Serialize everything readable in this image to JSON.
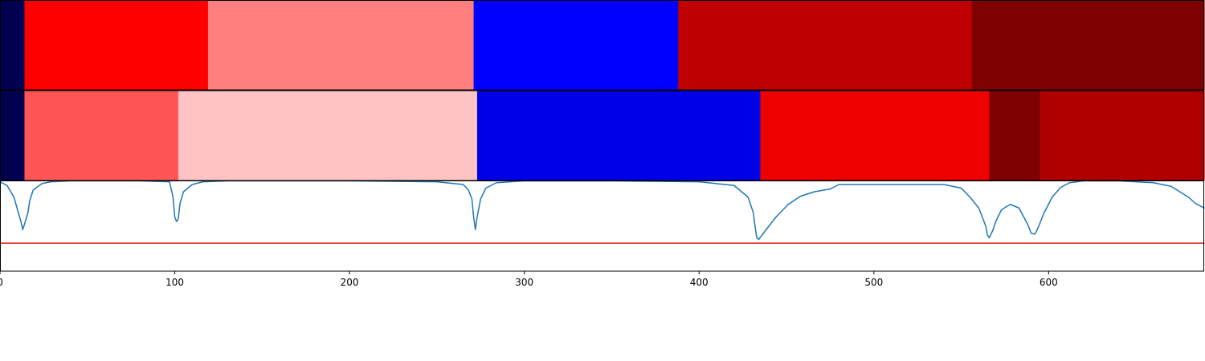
{
  "chart_data": [
    {
      "type": "heatmap",
      "colormap": "seismic",
      "segments": [
        {
          "start": 0,
          "end": 14,
          "color": "#000050"
        },
        {
          "start": 14,
          "end": 119,
          "color": "#ff0000"
        },
        {
          "start": 119,
          "end": 271,
          "color": "#ff7f7f"
        },
        {
          "start": 271,
          "end": 388,
          "color": "#0000ff"
        },
        {
          "start": 388,
          "end": 556,
          "color": "#bf0000"
        },
        {
          "start": 556,
          "end": 689,
          "color": "#7f0000"
        }
      ]
    },
    {
      "type": "heatmap",
      "colormap": "seismic",
      "segments": [
        {
          "start": 0,
          "end": 14,
          "color": "#000050"
        },
        {
          "start": 14,
          "end": 102,
          "color": "#ff5555"
        },
        {
          "start": 102,
          "end": 273,
          "color": "#ffc3c3"
        },
        {
          "start": 273,
          "end": 435,
          "color": "#0000e6"
        },
        {
          "start": 435,
          "end": 566,
          "color": "#ee0000"
        },
        {
          "start": 566,
          "end": 595,
          "color": "#7f0000"
        },
        {
          "start": 595,
          "end": 689,
          "color": "#b00000"
        }
      ]
    },
    {
      "type": "line",
      "xlim": [
        0,
        689
      ],
      "ylim": [
        0,
        1
      ],
      "xticks": [
        0,
        100,
        200,
        300,
        400,
        500,
        600
      ],
      "series": [
        {
          "color": "#1f77b4",
          "x": [
            0,
            4,
            8,
            10,
            12,
            13,
            14,
            16,
            17,
            19,
            24,
            29,
            40,
            60,
            80,
            97,
            99,
            100,
            101,
            102,
            103,
            105,
            110,
            116,
            130,
            160,
            200,
            250,
            265,
            268,
            270,
            271,
            272,
            273,
            275,
            278,
            284,
            300,
            350,
            400,
            420,
            428,
            431,
            432,
            433,
            434,
            436,
            438,
            440,
            444,
            451,
            458,
            466,
            475,
            480,
            520,
            530,
            540,
            550,
            555,
            560,
            562,
            564,
            565,
            566,
            568,
            570,
            573,
            578,
            583,
            588,
            590,
            592,
            593,
            595,
            597,
            602,
            607,
            612,
            620,
            640,
            660,
            670,
            675,
            680,
            684,
            689
          ],
          "y": [
            0.99,
            0.95,
            0.82,
            0.68,
            0.55,
            0.46,
            0.52,
            0.65,
            0.78,
            0.9,
            0.97,
            0.99,
            1.0,
            1.0,
            1.0,
            0.99,
            0.82,
            0.6,
            0.55,
            0.58,
            0.75,
            0.88,
            0.96,
            0.99,
            1.0,
            1.0,
            1.0,
            0.99,
            0.96,
            0.9,
            0.8,
            0.6,
            0.46,
            0.6,
            0.8,
            0.92,
            0.98,
            1.0,
            1.0,
            0.99,
            0.95,
            0.82,
            0.65,
            0.5,
            0.37,
            0.35,
            0.4,
            0.45,
            0.5,
            0.6,
            0.74,
            0.83,
            0.88,
            0.91,
            0.96,
            0.96,
            0.96,
            0.96,
            0.92,
            0.82,
            0.7,
            0.6,
            0.5,
            0.4,
            0.37,
            0.45,
            0.56,
            0.68,
            0.74,
            0.7,
            0.52,
            0.42,
            0.41,
            0.44,
            0.53,
            0.63,
            0.82,
            0.93,
            0.98,
            1.0,
            1.0,
            0.98,
            0.94,
            0.88,
            0.82,
            0.75,
            0.7
          ]
        },
        {
          "color": "#e31a1c",
          "x": [
            0,
            689
          ],
          "y": [
            0.31,
            0.31
          ]
        }
      ]
    }
  ]
}
